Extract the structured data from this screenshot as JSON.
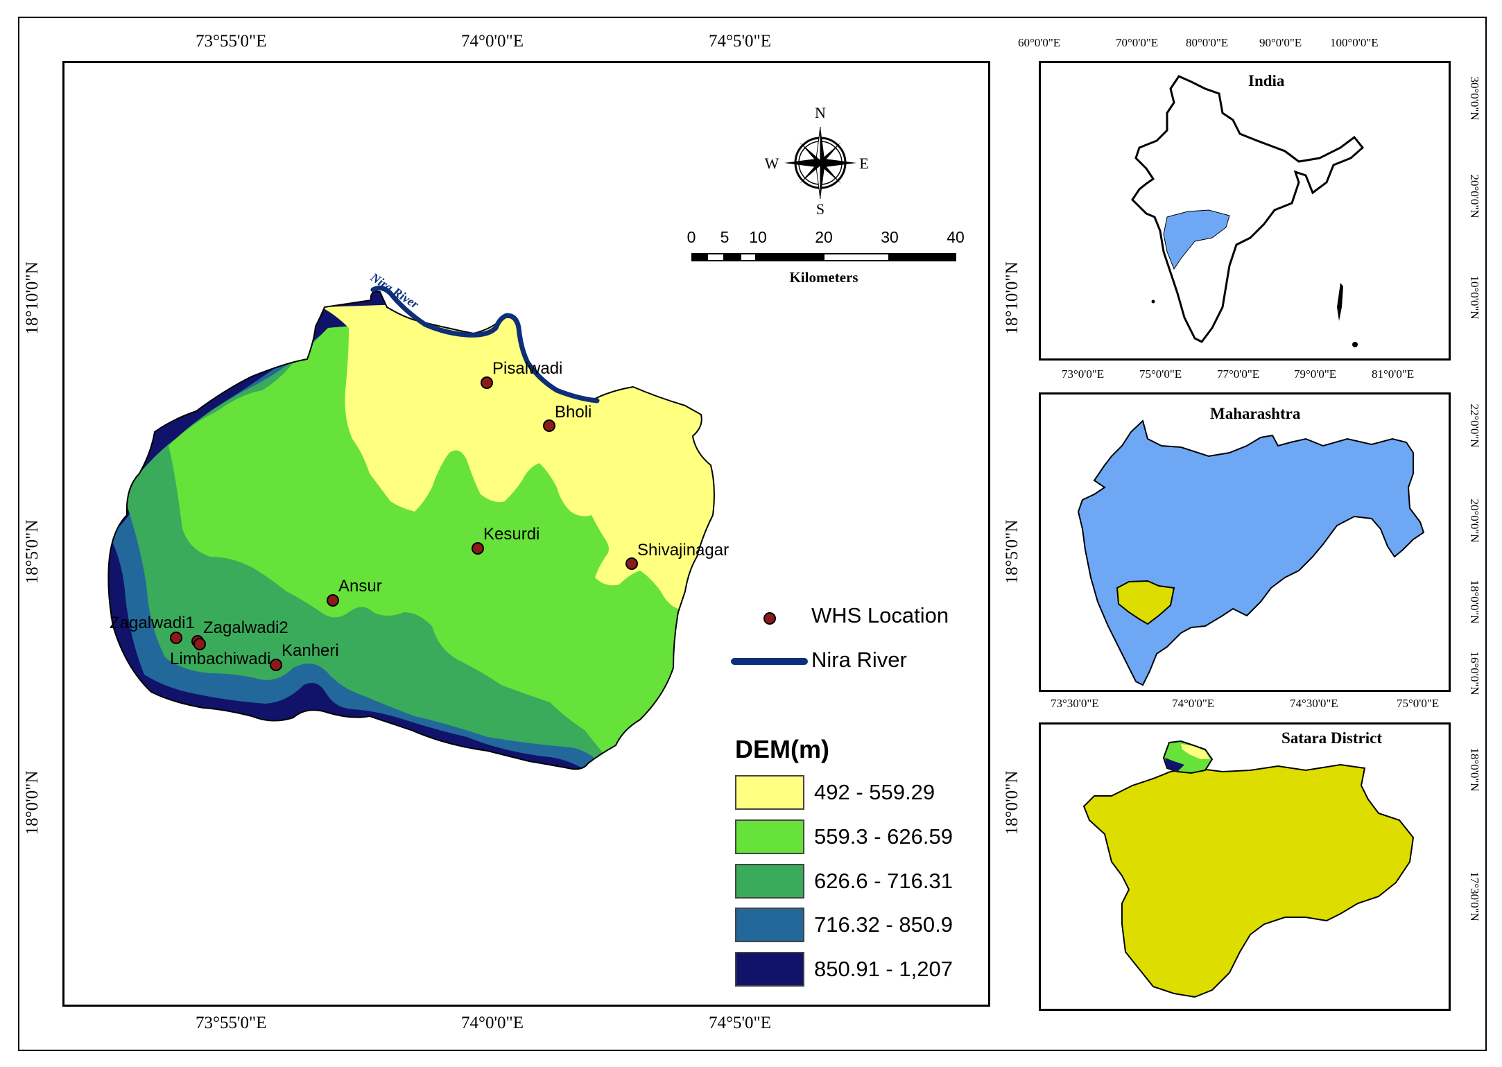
{
  "main_map": {
    "top_ticks": [
      "73°55'0\"E",
      "74°0'0\"E",
      "74°5'0\"E"
    ],
    "bottom_ticks": [
      "73°55'0\"E",
      "74°0'0\"E",
      "74°5'0\"E"
    ],
    "left_ticks": [
      "18°10'0\"N",
      "18°5'0\"N",
      "18°0'0\"N"
    ],
    "right_ticks": [
      "18°10'0\"N",
      "18°5'0\"N",
      "18°0'0\"N"
    ],
    "places": [
      "Pisalwadi",
      "Bholi",
      "Kesurdi",
      "Shivajinagar",
      "Ansur",
      "Zagalwadi1",
      "Zagalwadi2",
      "Limbachiwadi",
      "Kanheri"
    ],
    "river_label": "Nira River"
  },
  "compass": {
    "n": "N",
    "s": "S",
    "e": "E",
    "w": "W"
  },
  "scale_bar": {
    "ticks": [
      "0",
      "5",
      "10",
      "20",
      "30",
      "40"
    ],
    "unit": "Kilometers"
  },
  "legend": {
    "whs_label": "WHS Location",
    "river_label": "Nira River",
    "dem_title": "DEM(m)",
    "classes": [
      {
        "label": "492 - 559.29",
        "color": "#ffff80"
      },
      {
        "label": "559.3 - 626.59",
        "color": "#66e23a"
      },
      {
        "label": "626.6 - 716.31",
        "color": "#3aab5a"
      },
      {
        "label": "716.32 - 850.9",
        "color": "#23689a"
      },
      {
        "label": "850.91 - 1,207",
        "color": "#11136b"
      }
    ]
  },
  "insets": {
    "india": {
      "title": "India",
      "top_ticks": [
        "60°0'0\"E",
        "70°0'0\"E",
        "80°0'0\"E",
        "90°0'0\"E",
        "100°0'0\"E"
      ],
      "bottom_ticks": [
        "73°0'0\"E",
        "75°0'0\"E",
        "77°0'0\"E",
        "79°0'0\"E",
        "81°0'0\"E"
      ],
      "right_ticks": [
        "30°0'0\"N",
        "20°0'0\"N",
        "10°0'0\"N"
      ],
      "highlight_color": "#6ea8f5"
    },
    "maharashtra": {
      "title": "Maharashtra",
      "bottom_ticks": [
        "73°30'0\"E",
        "74°0'0\"E",
        "74°30'0\"E",
        "75°0'0\"E"
      ],
      "right_ticks": [
        "22°0'0\"N",
        "20°0'0\"N",
        "18°0'0\"N",
        "16°0'0\"N"
      ],
      "fill_color": "#6ea8f5",
      "highlight_color": "#dddd00"
    },
    "satara": {
      "title": "Satara District",
      "right_ticks": [
        "18°0'0\"N",
        "17°30'0\"N"
      ],
      "fill_color": "#dddd00"
    }
  },
  "colors": {
    "river": "#0d2f7a",
    "point": "#8b1a1a"
  }
}
